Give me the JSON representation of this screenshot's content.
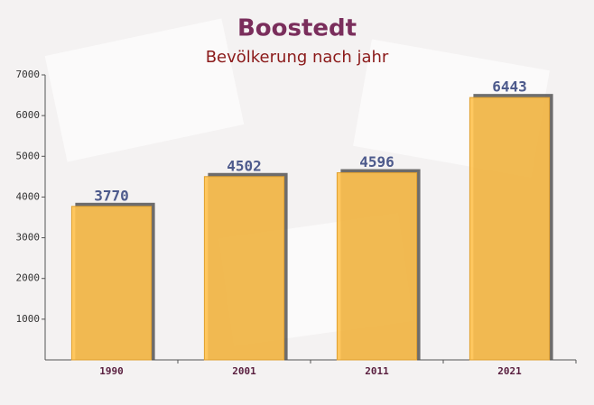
{
  "chart_data": {
    "type": "bar",
    "title": "Boostedt",
    "subtitle": "Bevölkerung nach jahr",
    "categories": [
      "1990",
      "2001",
      "2011",
      "2021"
    ],
    "values": [
      3770,
      4502,
      4596,
      6443
    ],
    "color": "#ffc24f",
    "ylim": [
      0,
      7000
    ],
    "yticks": [
      1000,
      2000,
      3000,
      4000,
      5000,
      6000,
      7000
    ]
  }
}
